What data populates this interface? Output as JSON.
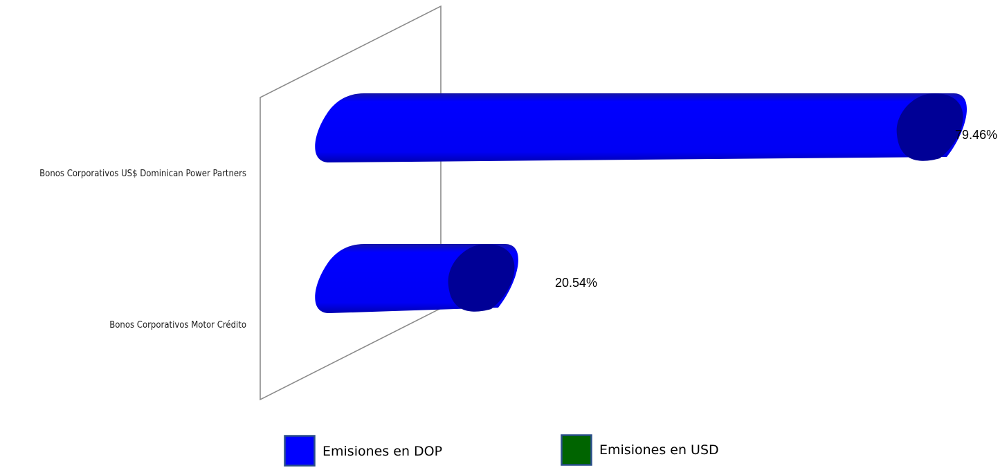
{
  "chart_data": {
    "type": "bar",
    "orientation": "horizontal",
    "style": "3d-cylinder",
    "categories": [
      "Bonos Corporativos US$ Dominican Power Partners",
      "Bonos Corporativos Motor Crédito"
    ],
    "series": [
      {
        "name": "Emisiones en DOP",
        "color": "#0000ff",
        "values": [
          79.46,
          20.54
        ],
        "labels": [
          "79.46%",
          "20.54%"
        ]
      },
      {
        "name": "Emisiones en USD",
        "color": "#006400",
        "values": [
          0,
          0
        ],
        "labels": [
          "",
          ""
        ]
      }
    ],
    "xlim": [
      0,
      100
    ],
    "legend": [
      "Emisiones en DOP",
      "Emisiones en USD"
    ],
    "legend_position": "bottom",
    "grid": false
  }
}
